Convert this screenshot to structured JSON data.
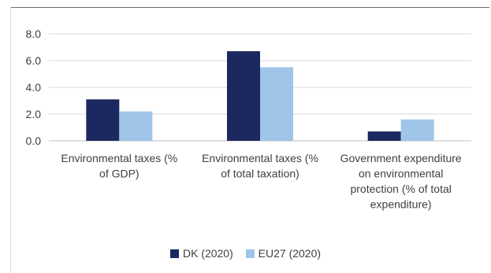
{
  "chart_data": {
    "type": "bar",
    "categories": [
      [
        "Environmental taxes (%",
        "of GDP)"
      ],
      [
        "Environmental taxes (%",
        "of total taxation)"
      ],
      [
        "Government expenditure",
        "on environmental",
        "protection (% of total",
        "expenditure)"
      ]
    ],
    "series": [
      {
        "name": "DK (2020)",
        "values": [
          3.1,
          6.7,
          0.7
        ],
        "color": "#1c2960"
      },
      {
        "name": "EU27 (2020)",
        "values": [
          2.2,
          5.5,
          1.6
        ],
        "color": "#9fc5e8"
      }
    ],
    "yticks": [
      "0.0",
      "2.0",
      "4.0",
      "6.0",
      "8.0"
    ],
    "ylim": [
      0,
      8
    ],
    "grid": true,
    "legend_position": "bottom"
  }
}
